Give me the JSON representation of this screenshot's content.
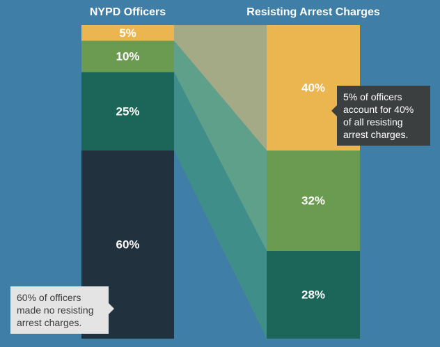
{
  "chart_data": {
    "type": "stacked-bar-flow",
    "columns": [
      {
        "title": "NYPD Officers",
        "segments": [
          {
            "label": "5%",
            "value": 5,
            "color": "#ebb54f"
          },
          {
            "label": "10%",
            "value": 10,
            "color": "#6b9a51"
          },
          {
            "label": "25%",
            "value": 25,
            "color": "#1c6559"
          },
          {
            "label": "60%",
            "value": 60,
            "color": "#22313e"
          }
        ]
      },
      {
        "title": "Resisting Arrest Charges",
        "segments": [
          {
            "label": "40%",
            "value": 40,
            "color": "#ebb54f"
          },
          {
            "label": "32%",
            "value": 32,
            "color": "#6b9a51"
          },
          {
            "label": "28%",
            "value": 28,
            "color": "#1c6559"
          }
        ]
      }
    ],
    "flows": [
      {
        "from": 0,
        "to": 0,
        "color": "#a5aa86"
      },
      {
        "from": 1,
        "to": 1,
        "color": "#5fa08a"
      },
      {
        "from": 2,
        "to": 2,
        "color": "#3f8e8a"
      }
    ],
    "annotations": [
      {
        "text": "5% of officers account for 40% of all resisting arrest charges.",
        "style": "dark"
      },
      {
        "text": "60% of officers made no resisting arrest charges.",
        "style": "light"
      }
    ]
  }
}
